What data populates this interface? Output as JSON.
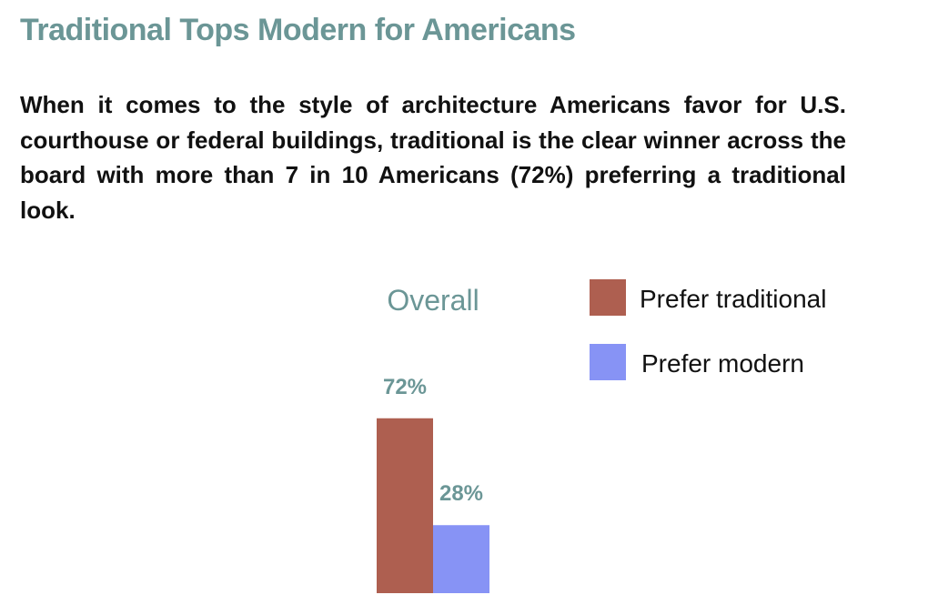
{
  "header": {
    "title": "Traditional Tops Modern for Americans",
    "lede": "When it comes to the style of architecture Americans favor for U.S. courthouse or federal buildings, traditional is the clear winner across the board with more than 7 in 10 Americans (72%) preferring a traditional look."
  },
  "chart_data": {
    "type": "bar",
    "title": "",
    "categories": [
      "Overall"
    ],
    "series": [
      {
        "name": "Prefer traditional",
        "values": [
          72
        ],
        "value_label": "72%",
        "color": "#ae5f50"
      },
      {
        "name": "Prefer modern",
        "values": [
          28
        ],
        "value_label": "28%",
        "color": "#8793f5"
      }
    ],
    "ylim": [
      0,
      100
    ],
    "grid": false,
    "legend": "top-right",
    "xlabel": "",
    "ylabel": ""
  }
}
